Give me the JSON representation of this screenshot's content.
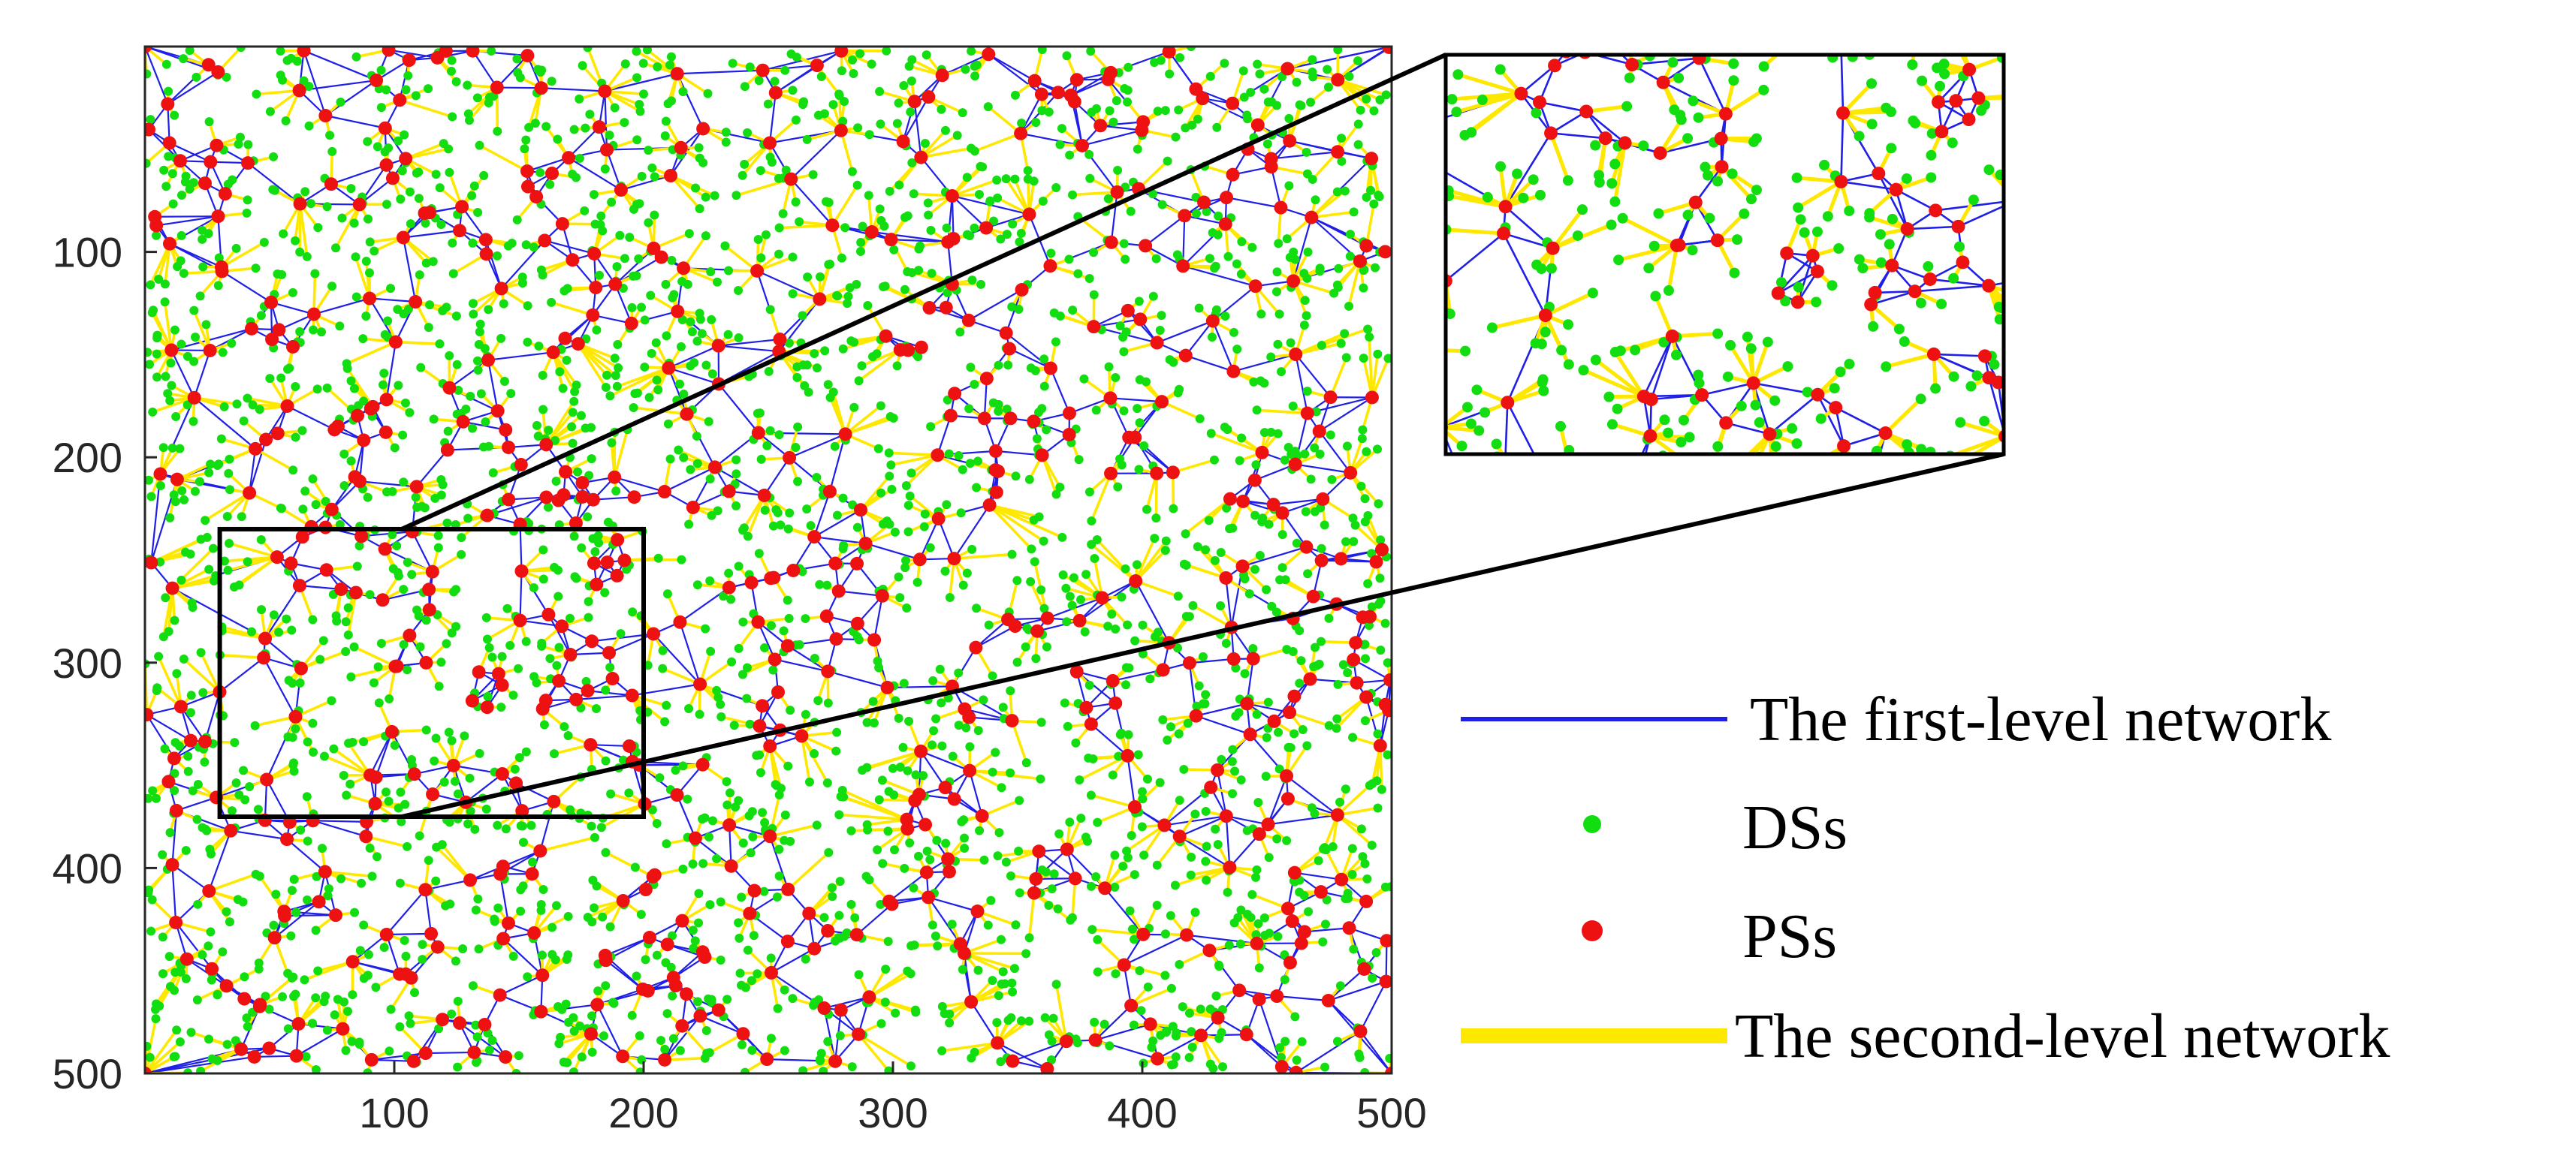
{
  "chart_data": {
    "type": "scatter",
    "title": "",
    "xlabel": "",
    "ylabel": "",
    "xlim": [
      0,
      500
    ],
    "ylim": [
      0,
      500
    ],
    "y_reversed": true,
    "grid": false,
    "xticks": [
      100,
      200,
      300,
      400,
      500
    ],
    "yticks": [
      100,
      200,
      300,
      400,
      500
    ],
    "xtick_labels": [
      "100",
      "200",
      "300",
      "400",
      "500"
    ],
    "ytick_labels": [
      "100",
      "200",
      "300",
      "400",
      "500"
    ],
    "legend_placement": "right",
    "series": [
      {
        "name": "The first-level network",
        "marker": "line",
        "color": "#1f1fe6"
      },
      {
        "name": "DSs",
        "marker": "dot",
        "color": "#11dd11"
      },
      {
        "name": "PSs",
        "marker": "dot",
        "color": "#ee1111"
      },
      {
        "name": "The second-level network",
        "marker": "line",
        "color": "#ffe800"
      }
    ],
    "zoom_region": {
      "x": [
        30,
        200
      ],
      "y": [
        235,
        375
      ]
    },
    "estimated_counts": {
      "PSs": 600,
      "DSs": 2400
    }
  }
}
